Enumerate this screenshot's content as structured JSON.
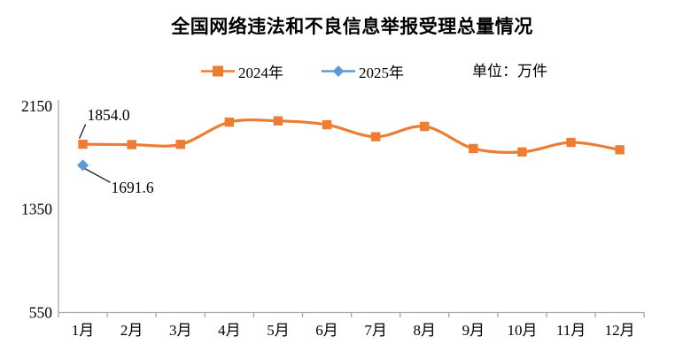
{
  "title": "全国网络违法和不良信息举报受理总量情况",
  "unit_label": "单位：万件",
  "legend": [
    {
      "label": "2024年",
      "color": "#ED7D31",
      "marker": "square-icon"
    },
    {
      "label": "2025年",
      "color": "#5B9BD5",
      "marker": "diamond-icon"
    }
  ],
  "colors": {
    "series_2024": "#ED7D31",
    "series_2025": "#5B9BD5",
    "axis": "#A6A6A6",
    "text": "#000000",
    "leader_line": "#1a1a1a"
  },
  "chart_data": {
    "type": "line",
    "title": "全国网络违法和不良信息举报受理总量情况",
    "categories": [
      "1月",
      "2月",
      "3月",
      "4月",
      "5月",
      "6月",
      "7月",
      "8月",
      "9月",
      "10月",
      "11月",
      "12月"
    ],
    "series": [
      {
        "name": "2024年",
        "color": "#ED7D31",
        "marker": "square",
        "smooth": true,
        "values": [
          1854.0,
          1851,
          1853,
          2025,
          2035,
          2005,
          1912,
          1992,
          1821,
          1794,
          1868,
          1811
        ]
      },
      {
        "name": "2025年",
        "color": "#5B9BD5",
        "marker": "diamond",
        "smooth": true,
        "values": [
          1691.6,
          null,
          null,
          null,
          null,
          null,
          null,
          null,
          null,
          null,
          null,
          null
        ]
      }
    ],
    "annotations": [
      {
        "series": "2024年",
        "category": "1月",
        "text": "1854.0"
      },
      {
        "series": "2025年",
        "category": "1月",
        "text": "1691.6"
      }
    ],
    "xlabel": "",
    "ylabel": "",
    "ylim": [
      550,
      2150
    ],
    "yticks": [
      2150,
      1350,
      550
    ],
    "grid": false,
    "legend_position": "top"
  }
}
